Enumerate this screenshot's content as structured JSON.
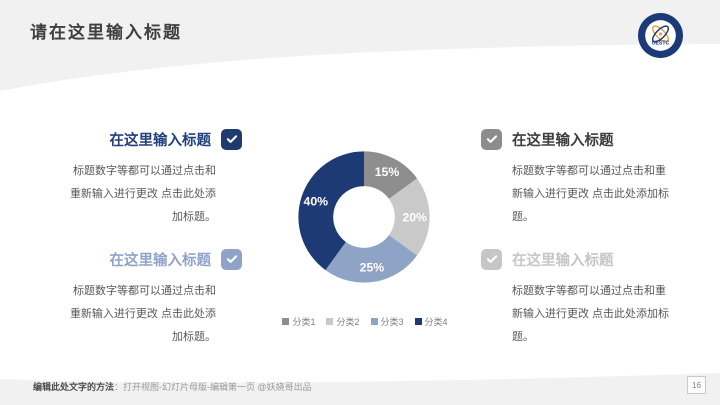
{
  "slide": {
    "title": "请在这里输入标题",
    "page_number": "16",
    "footer": {
      "method_label": "编辑此处文字的方法",
      "method_text": "：打开视图-幻灯片母版-编辑第一页 @妖娆哥出品"
    },
    "logo_text": "UESTC"
  },
  "blocks": [
    {
      "heading": "在这里输入标题",
      "body": "标题数字等都可以通过点击和重新输入进行更改 点击此处添加标题。",
      "accent": "#1e3a6e",
      "heading_color": "#22407c",
      "checked": true
    },
    {
      "heading": "在这里输入标题",
      "body": "标题数字等都可以通过点击和重新输入进行更改 点击此处添加标题。",
      "accent": "#8fa3c9",
      "heading_color": "#8fa3c9",
      "checked": true
    },
    {
      "heading": "在这里输入标题",
      "body": "标题数字等都可以通过点击和重新输入进行更改  点击此处添加标题。",
      "accent": "#8c8c8c",
      "heading_color": "#3d3d3d",
      "checked": true
    },
    {
      "heading": "在这里输入标题",
      "body": "标题数字等都可以通过点击和重新输入进行更改  点击此处添加标题。",
      "accent": "#c6c6c6",
      "heading_color": "#c6c6c6",
      "checked": true
    }
  ],
  "chart_data": {
    "type": "pie",
    "subtype": "donut",
    "title": "",
    "categories": [
      "分类1",
      "分类2",
      "分类3",
      "分类4"
    ],
    "values": [
      15,
      20,
      25,
      40
    ],
    "labels": [
      "15%",
      "20%",
      "25%",
      "40%"
    ],
    "colors": [
      "#8e8e8e",
      "#c9c9c9",
      "#8fa3c7",
      "#1d3a74"
    ],
    "start_angle_deg": 0,
    "direction": "clockwise",
    "inner_radius_ratio": 0.47,
    "label_color": "#ffffff",
    "legend_position": "bottom"
  },
  "theme": {
    "background_gray": "#f1f1f1",
    "content_white": "#ffffff",
    "navy": "#1d3a74",
    "periwinkle": "#8fa3c9",
    "body_text": "#595959"
  }
}
